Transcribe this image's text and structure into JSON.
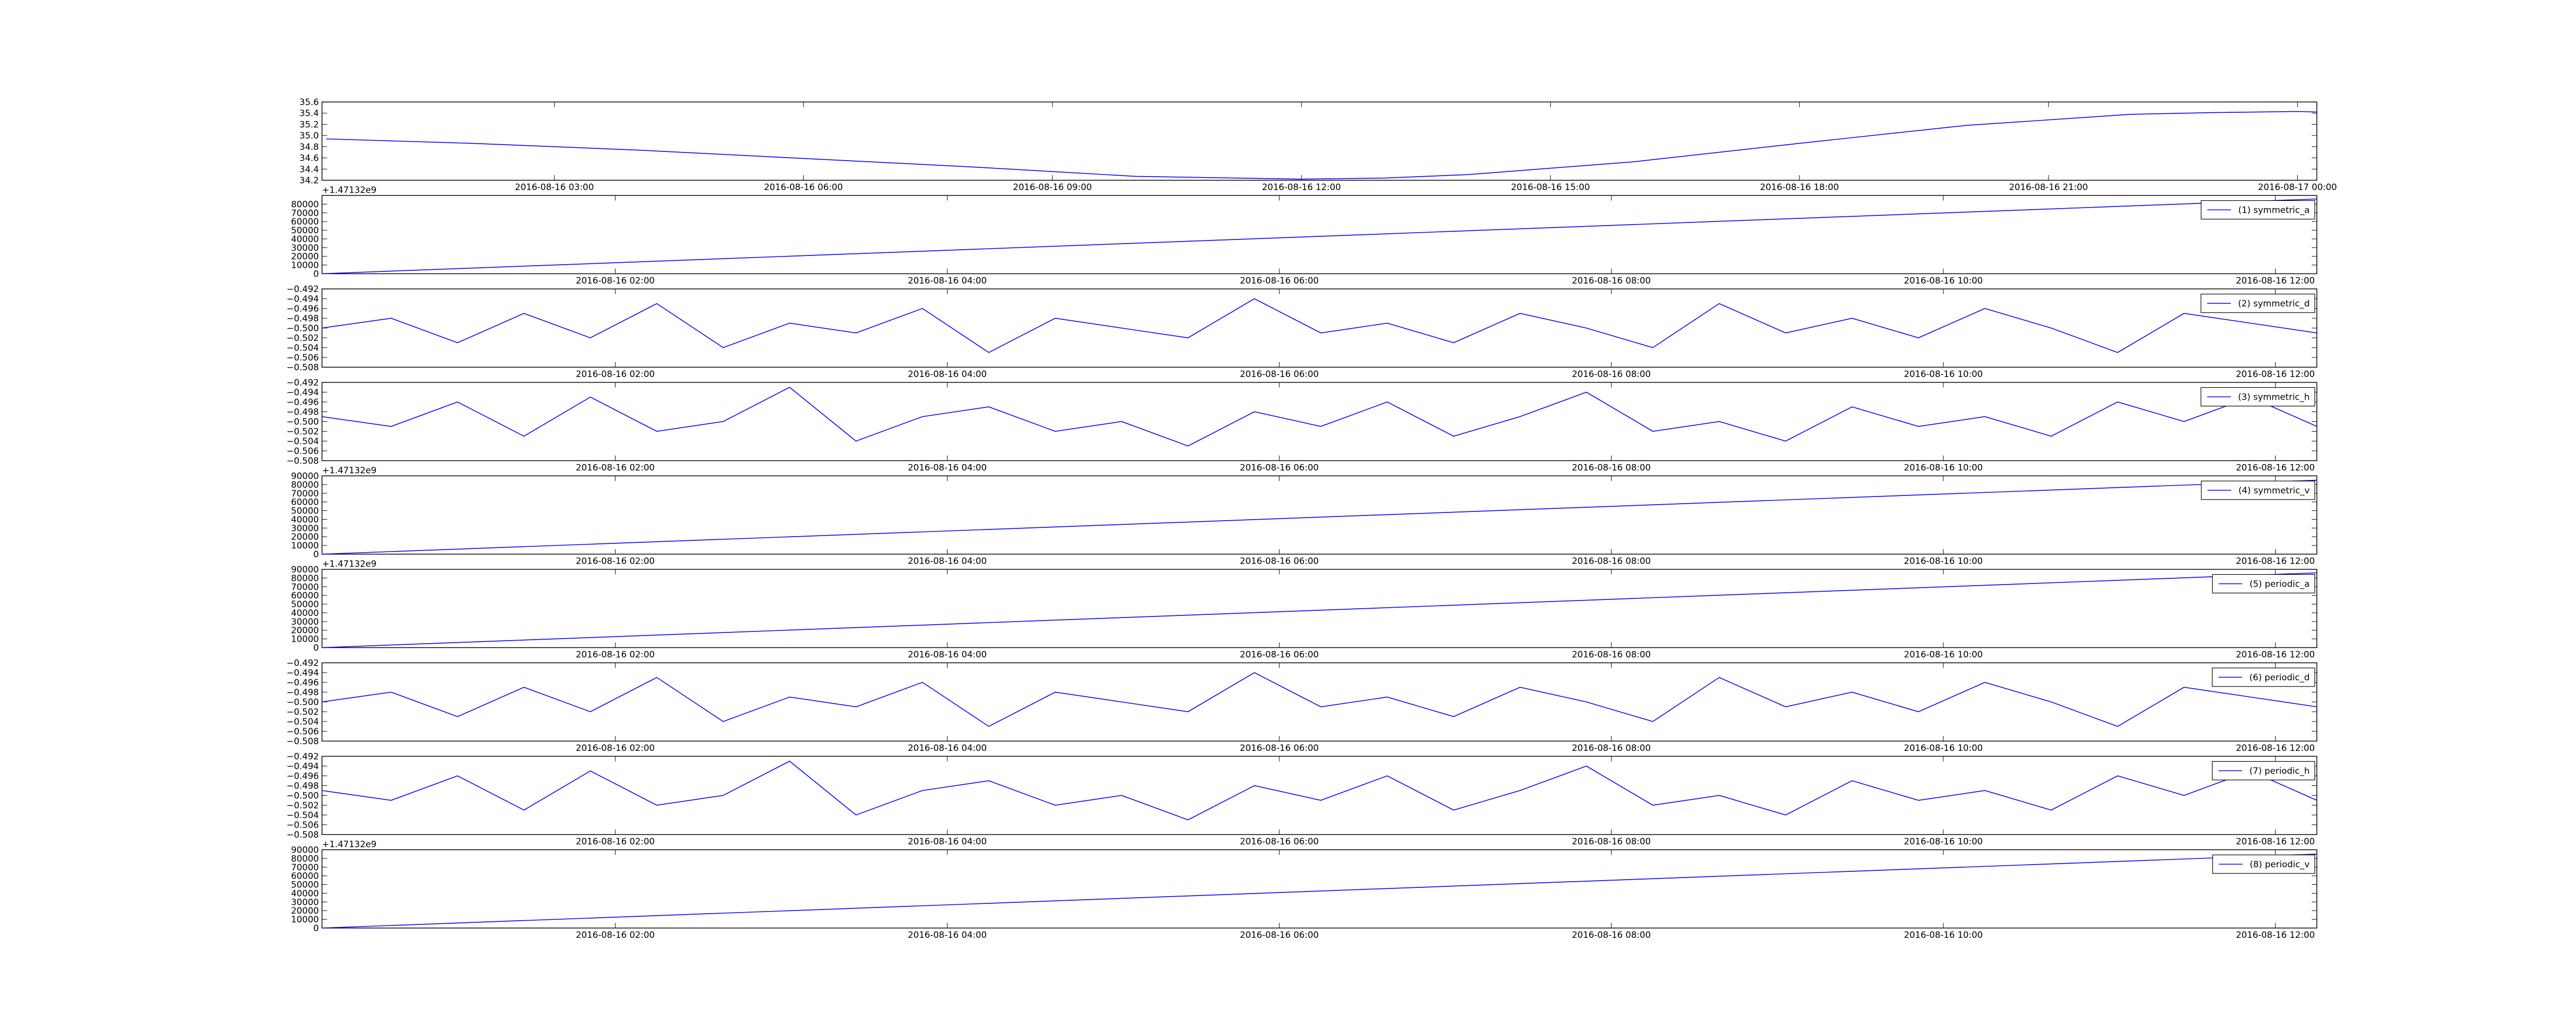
{
  "chart_data": [
    {
      "type": "line",
      "color": "#0000ff",
      "x": [
        "2016-08-16 00:15",
        "2016-08-16 02:00",
        "2016-08-16 04:00",
        "2016-08-16 06:00",
        "2016-08-16 08:00",
        "2016-08-16 10:00",
        "2016-08-16 12:00",
        "2016-08-16 13:00",
        "2016-08-16 14:00",
        "2016-08-16 16:00",
        "2016-08-16 18:00",
        "2016-08-16 20:00",
        "2016-08-16 22:00",
        "2016-08-16 23:00",
        "2016-08-17 00:00",
        "2016-08-17 00:14"
      ],
      "values": [
        34.94,
        34.86,
        34.74,
        34.59,
        34.44,
        34.27,
        34.22,
        34.24,
        34.3,
        34.53,
        34.86,
        35.18,
        35.38,
        35.41,
        35.43,
        35.42
      ],
      "xlim": [
        "2016-08-16 00:12",
        "2016-08-17 00:14"
      ],
      "xticks": [
        "2016-08-16 03:00",
        "2016-08-16 06:00",
        "2016-08-16 09:00",
        "2016-08-16 12:00",
        "2016-08-16 15:00",
        "2016-08-16 18:00",
        "2016-08-16 21:00",
        "2016-08-17 00:00"
      ],
      "ylim": [
        34.2,
        35.6
      ],
      "yticks": [
        34.2,
        34.4,
        34.6,
        34.8,
        {
          "value": 35,
          "label": "35.0"
        },
        35.2,
        35.4,
        35.6
      ]
    },
    {
      "type": "line",
      "y_offset_label": "+1.47132e9",
      "legend": "upper right",
      "x": [
        "2016-08-16 00:14",
        "2016-08-16 12:15"
      ],
      "series": [
        {
          "name": "(1) symmetric_a",
          "color": "#0000ff",
          "values": [
            0,
            86000
          ]
        }
      ],
      "xlim": [
        "2016-08-16 00:14",
        "2016-08-16 12:15"
      ],
      "xticks": [
        "2016-08-16 02:00",
        "2016-08-16 04:00",
        "2016-08-16 06:00",
        "2016-08-16 08:00",
        "2016-08-16 10:00",
        "2016-08-16 12:00"
      ],
      "ylim": [
        0,
        90000
      ],
      "yticks": [
        0,
        10000,
        20000,
        30000,
        40000,
        50000,
        60000,
        70000,
        80000
      ]
    },
    {
      "type": "line",
      "legend": "upper right",
      "x": [
        "2016-08-16 00:14",
        "2016-08-16 00:39",
        "2016-08-16 01:03",
        "2016-08-16 01:27",
        "2016-08-16 01:51",
        "2016-08-16 02:15",
        "2016-08-16 02:39",
        "2016-08-16 03:03",
        "2016-08-16 03:27",
        "2016-08-16 03:51",
        "2016-08-16 04:15",
        "2016-08-16 04:39",
        "2016-08-16 05:03",
        "2016-08-16 05:27",
        "2016-08-16 05:51",
        "2016-08-16 06:15",
        "2016-08-16 06:39",
        "2016-08-16 07:03",
        "2016-08-16 07:27",
        "2016-08-16 07:51",
        "2016-08-16 08:15",
        "2016-08-16 08:39",
        "2016-08-16 09:03",
        "2016-08-16 09:27",
        "2016-08-16 09:51",
        "2016-08-16 10:15",
        "2016-08-16 10:39",
        "2016-08-16 11:03",
        "2016-08-16 11:27",
        "2016-08-16 11:51",
        "2016-08-16 12:15"
      ],
      "series": [
        {
          "name": "(2) symmetric_d",
          "color": "#0000ff",
          "values": [
            -0.5,
            -0.498,
            -0.503,
            -0.497,
            -0.502,
            -0.495,
            -0.504,
            -0.499,
            -0.501,
            -0.496,
            -0.505,
            -0.498,
            -0.5,
            -0.502,
            -0.494,
            -0.501,
            -0.499,
            -0.503,
            -0.497,
            -0.5,
            -0.504,
            -0.495,
            -0.501,
            -0.498,
            -0.502,
            -0.496,
            -0.5,
            -0.505,
            -0.497,
            -0.499,
            -0.501
          ]
        }
      ],
      "xlim": [
        "2016-08-16 00:14",
        "2016-08-16 12:15"
      ],
      "xticks": [
        "2016-08-16 02:00",
        "2016-08-16 04:00",
        "2016-08-16 06:00",
        "2016-08-16 08:00",
        "2016-08-16 10:00",
        "2016-08-16 12:00"
      ],
      "ylim": [
        -0.508,
        -0.492
      ],
      "yticks": [
        {
          "value": -0.508,
          "label": "−0.508"
        },
        {
          "value": -0.506,
          "label": "−0.506"
        },
        {
          "value": -0.504,
          "label": "−0.504"
        },
        {
          "value": -0.502,
          "label": "−0.502"
        },
        {
          "value": -0.5,
          "label": "−0.500"
        },
        {
          "value": -0.498,
          "label": "−0.498"
        },
        {
          "value": -0.496,
          "label": "−0.496"
        },
        {
          "value": -0.494,
          "label": "−0.494"
        },
        {
          "value": -0.492,
          "label": "−0.492"
        }
      ]
    },
    {
      "type": "line",
      "legend": "upper right",
      "x": [
        "2016-08-16 00:14",
        "2016-08-16 00:39",
        "2016-08-16 01:03",
        "2016-08-16 01:27",
        "2016-08-16 01:51",
        "2016-08-16 02:15",
        "2016-08-16 02:39",
        "2016-08-16 03:03",
        "2016-08-16 03:27",
        "2016-08-16 03:51",
        "2016-08-16 04:15",
        "2016-08-16 04:39",
        "2016-08-16 05:03",
        "2016-08-16 05:27",
        "2016-08-16 05:51",
        "2016-08-16 06:15",
        "2016-08-16 06:39",
        "2016-08-16 07:03",
        "2016-08-16 07:27",
        "2016-08-16 07:51",
        "2016-08-16 08:15",
        "2016-08-16 08:39",
        "2016-08-16 09:03",
        "2016-08-16 09:27",
        "2016-08-16 09:51",
        "2016-08-16 10:15",
        "2016-08-16 10:39",
        "2016-08-16 11:03",
        "2016-08-16 11:27",
        "2016-08-16 11:51",
        "2016-08-16 12:15"
      ],
      "series": [
        {
          "name": "(3) symmetric_h",
          "color": "#0000ff",
          "values": [
            -0.499,
            -0.501,
            -0.496,
            -0.503,
            -0.495,
            -0.502,
            -0.5,
            -0.493,
            -0.504,
            -0.499,
            -0.497,
            -0.502,
            -0.5,
            -0.505,
            -0.498,
            -0.501,
            -0.496,
            -0.503,
            -0.499,
            -0.494,
            -0.502,
            -0.5,
            -0.504,
            -0.497,
            -0.501,
            -0.499,
            -0.503,
            -0.496,
            -0.5,
            -0.495,
            -0.501
          ]
        }
      ],
      "xlim": [
        "2016-08-16 00:14",
        "2016-08-16 12:15"
      ],
      "xticks": [
        "2016-08-16 02:00",
        "2016-08-16 04:00",
        "2016-08-16 06:00",
        "2016-08-16 08:00",
        "2016-08-16 10:00",
        "2016-08-16 12:00"
      ],
      "ylim": [
        -0.508,
        -0.492
      ],
      "yticks": [
        {
          "value": -0.508,
          "label": "−0.508"
        },
        {
          "value": -0.506,
          "label": "−0.506"
        },
        {
          "value": -0.504,
          "label": "−0.504"
        },
        {
          "value": -0.502,
          "label": "−0.502"
        },
        {
          "value": -0.5,
          "label": "−0.500"
        },
        {
          "value": -0.498,
          "label": "−0.498"
        },
        {
          "value": -0.496,
          "label": "−0.496"
        },
        {
          "value": -0.494,
          "label": "−0.494"
        },
        {
          "value": -0.492,
          "label": "−0.492"
        }
      ]
    },
    {
      "type": "line",
      "y_offset_label": "+1.47132e9",
      "legend": "upper right",
      "x": [
        "2016-08-16 00:14",
        "2016-08-16 12:15"
      ],
      "series": [
        {
          "name": "(4) symmetric_v",
          "color": "#0000ff",
          "values": [
            0,
            85000
          ]
        }
      ],
      "xlim": [
        "2016-08-16 00:14",
        "2016-08-16 12:15"
      ],
      "xticks": [
        "2016-08-16 02:00",
        "2016-08-16 04:00",
        "2016-08-16 06:00",
        "2016-08-16 08:00",
        "2016-08-16 10:00",
        "2016-08-16 12:00"
      ],
      "ylim": [
        0,
        90000
      ],
      "yticks": [
        0,
        10000,
        20000,
        30000,
        40000,
        50000,
        60000,
        70000,
        80000,
        90000
      ]
    },
    {
      "type": "line",
      "y_offset_label": "+1.47132e9",
      "legend": "upper right",
      "x": [
        "2016-08-16 00:14",
        "2016-08-16 12:15"
      ],
      "series": [
        {
          "name": "(5) periodic_a",
          "color": "#0000ff",
          "values": [
            0,
            86000
          ]
        }
      ],
      "xlim": [
        "2016-08-16 00:14",
        "2016-08-16 12:15"
      ],
      "xticks": [
        "2016-08-16 02:00",
        "2016-08-16 04:00",
        "2016-08-16 06:00",
        "2016-08-16 08:00",
        "2016-08-16 10:00",
        "2016-08-16 12:00"
      ],
      "ylim": [
        0,
        90000
      ],
      "yticks": [
        0,
        10000,
        20000,
        30000,
        40000,
        50000,
        60000,
        70000,
        80000,
        90000
      ]
    },
    {
      "type": "line",
      "legend": "upper right",
      "x": [
        "2016-08-16 00:14",
        "2016-08-16 00:39",
        "2016-08-16 01:03",
        "2016-08-16 01:27",
        "2016-08-16 01:51",
        "2016-08-16 02:15",
        "2016-08-16 02:39",
        "2016-08-16 03:03",
        "2016-08-16 03:27",
        "2016-08-16 03:51",
        "2016-08-16 04:15",
        "2016-08-16 04:39",
        "2016-08-16 05:03",
        "2016-08-16 05:27",
        "2016-08-16 05:51",
        "2016-08-16 06:15",
        "2016-08-16 06:39",
        "2016-08-16 07:03",
        "2016-08-16 07:27",
        "2016-08-16 07:51",
        "2016-08-16 08:15",
        "2016-08-16 08:39",
        "2016-08-16 09:03",
        "2016-08-16 09:27",
        "2016-08-16 09:51",
        "2016-08-16 10:15",
        "2016-08-16 10:39",
        "2016-08-16 11:03",
        "2016-08-16 11:27",
        "2016-08-16 11:51",
        "2016-08-16 12:15"
      ],
      "series": [
        {
          "name": "(6) periodic_d",
          "color": "#0000ff",
          "values": [
            -0.5,
            -0.498,
            -0.503,
            -0.497,
            -0.502,
            -0.495,
            -0.504,
            -0.499,
            -0.501,
            -0.496,
            -0.505,
            -0.498,
            -0.5,
            -0.502,
            -0.494,
            -0.501,
            -0.499,
            -0.503,
            -0.497,
            -0.5,
            -0.504,
            -0.495,
            -0.501,
            -0.498,
            -0.502,
            -0.496,
            -0.5,
            -0.505,
            -0.497,
            -0.499,
            -0.501
          ]
        }
      ],
      "xlim": [
        "2016-08-16 00:14",
        "2016-08-16 12:15"
      ],
      "xticks": [
        "2016-08-16 02:00",
        "2016-08-16 04:00",
        "2016-08-16 06:00",
        "2016-08-16 08:00",
        "2016-08-16 10:00",
        "2016-08-16 12:00"
      ],
      "ylim": [
        -0.508,
        -0.492
      ],
      "yticks": [
        {
          "value": -0.508,
          "label": "−0.508"
        },
        {
          "value": -0.506,
          "label": "−0.506"
        },
        {
          "value": -0.504,
          "label": "−0.504"
        },
        {
          "value": -0.502,
          "label": "−0.502"
        },
        {
          "value": -0.5,
          "label": "−0.500"
        },
        {
          "value": -0.498,
          "label": "−0.498"
        },
        {
          "value": -0.496,
          "label": "−0.496"
        },
        {
          "value": -0.494,
          "label": "−0.494"
        },
        {
          "value": -0.492,
          "label": "−0.492"
        }
      ]
    },
    {
      "type": "line",
      "legend": "upper right",
      "x": [
        "2016-08-16 00:14",
        "2016-08-16 00:39",
        "2016-08-16 01:03",
        "2016-08-16 01:27",
        "2016-08-16 01:51",
        "2016-08-16 02:15",
        "2016-08-16 02:39",
        "2016-08-16 03:03",
        "2016-08-16 03:27",
        "2016-08-16 03:51",
        "2016-08-16 04:15",
        "2016-08-16 04:39",
        "2016-08-16 05:03",
        "2016-08-16 05:27",
        "2016-08-16 05:51",
        "2016-08-16 06:15",
        "2016-08-16 06:39",
        "2016-08-16 07:03",
        "2016-08-16 07:27",
        "2016-08-16 07:51",
        "2016-08-16 08:15",
        "2016-08-16 08:39",
        "2016-08-16 09:03",
        "2016-08-16 09:27",
        "2016-08-16 09:51",
        "2016-08-16 10:15",
        "2016-08-16 10:39",
        "2016-08-16 11:03",
        "2016-08-16 11:27",
        "2016-08-16 11:51",
        "2016-08-16 12:15"
      ],
      "series": [
        {
          "name": "(7) periodic_h",
          "color": "#0000ff",
          "values": [
            -0.499,
            -0.501,
            -0.496,
            -0.503,
            -0.495,
            -0.502,
            -0.5,
            -0.493,
            -0.504,
            -0.499,
            -0.497,
            -0.502,
            -0.5,
            -0.505,
            -0.498,
            -0.501,
            -0.496,
            -0.503,
            -0.499,
            -0.494,
            -0.502,
            -0.5,
            -0.504,
            -0.497,
            -0.501,
            -0.499,
            -0.503,
            -0.496,
            -0.5,
            -0.495,
            -0.501
          ]
        }
      ],
      "xlim": [
        "2016-08-16 00:14",
        "2016-08-16 12:15"
      ],
      "xticks": [
        "2016-08-16 02:00",
        "2016-08-16 04:00",
        "2016-08-16 06:00",
        "2016-08-16 08:00",
        "2016-08-16 10:00",
        "2016-08-16 12:00"
      ],
      "ylim": [
        -0.508,
        -0.492
      ],
      "yticks": [
        {
          "value": -0.508,
          "label": "−0.508"
        },
        {
          "value": -0.506,
          "label": "−0.506"
        },
        {
          "value": -0.504,
          "label": "−0.504"
        },
        {
          "value": -0.502,
          "label": "−0.502"
        },
        {
          "value": -0.5,
          "label": "−0.500"
        },
        {
          "value": -0.498,
          "label": "−0.498"
        },
        {
          "value": -0.496,
          "label": "−0.496"
        },
        {
          "value": -0.494,
          "label": "−0.494"
        },
        {
          "value": -0.492,
          "label": "−0.492"
        }
      ]
    },
    {
      "type": "line",
      "y_offset_label": "+1.47132e9",
      "legend": "upper right",
      "x": [
        "2016-08-16 00:14",
        "2016-08-16 12:15"
      ],
      "series": [
        {
          "name": "(8) periodic_v",
          "color": "#0000ff",
          "values": [
            0,
            85000
          ]
        }
      ],
      "xlim": [
        "2016-08-16 00:14",
        "2016-08-16 12:15"
      ],
      "xticks": [
        "2016-08-16 02:00",
        "2016-08-16 04:00",
        "2016-08-16 06:00",
        "2016-08-16 08:00",
        "2016-08-16 10:00",
        "2016-08-16 12:00"
      ],
      "ylim": [
        0,
        90000
      ],
      "yticks": [
        0,
        10000,
        20000,
        30000,
        40000,
        50000,
        60000,
        70000,
        80000,
        90000
      ]
    }
  ]
}
